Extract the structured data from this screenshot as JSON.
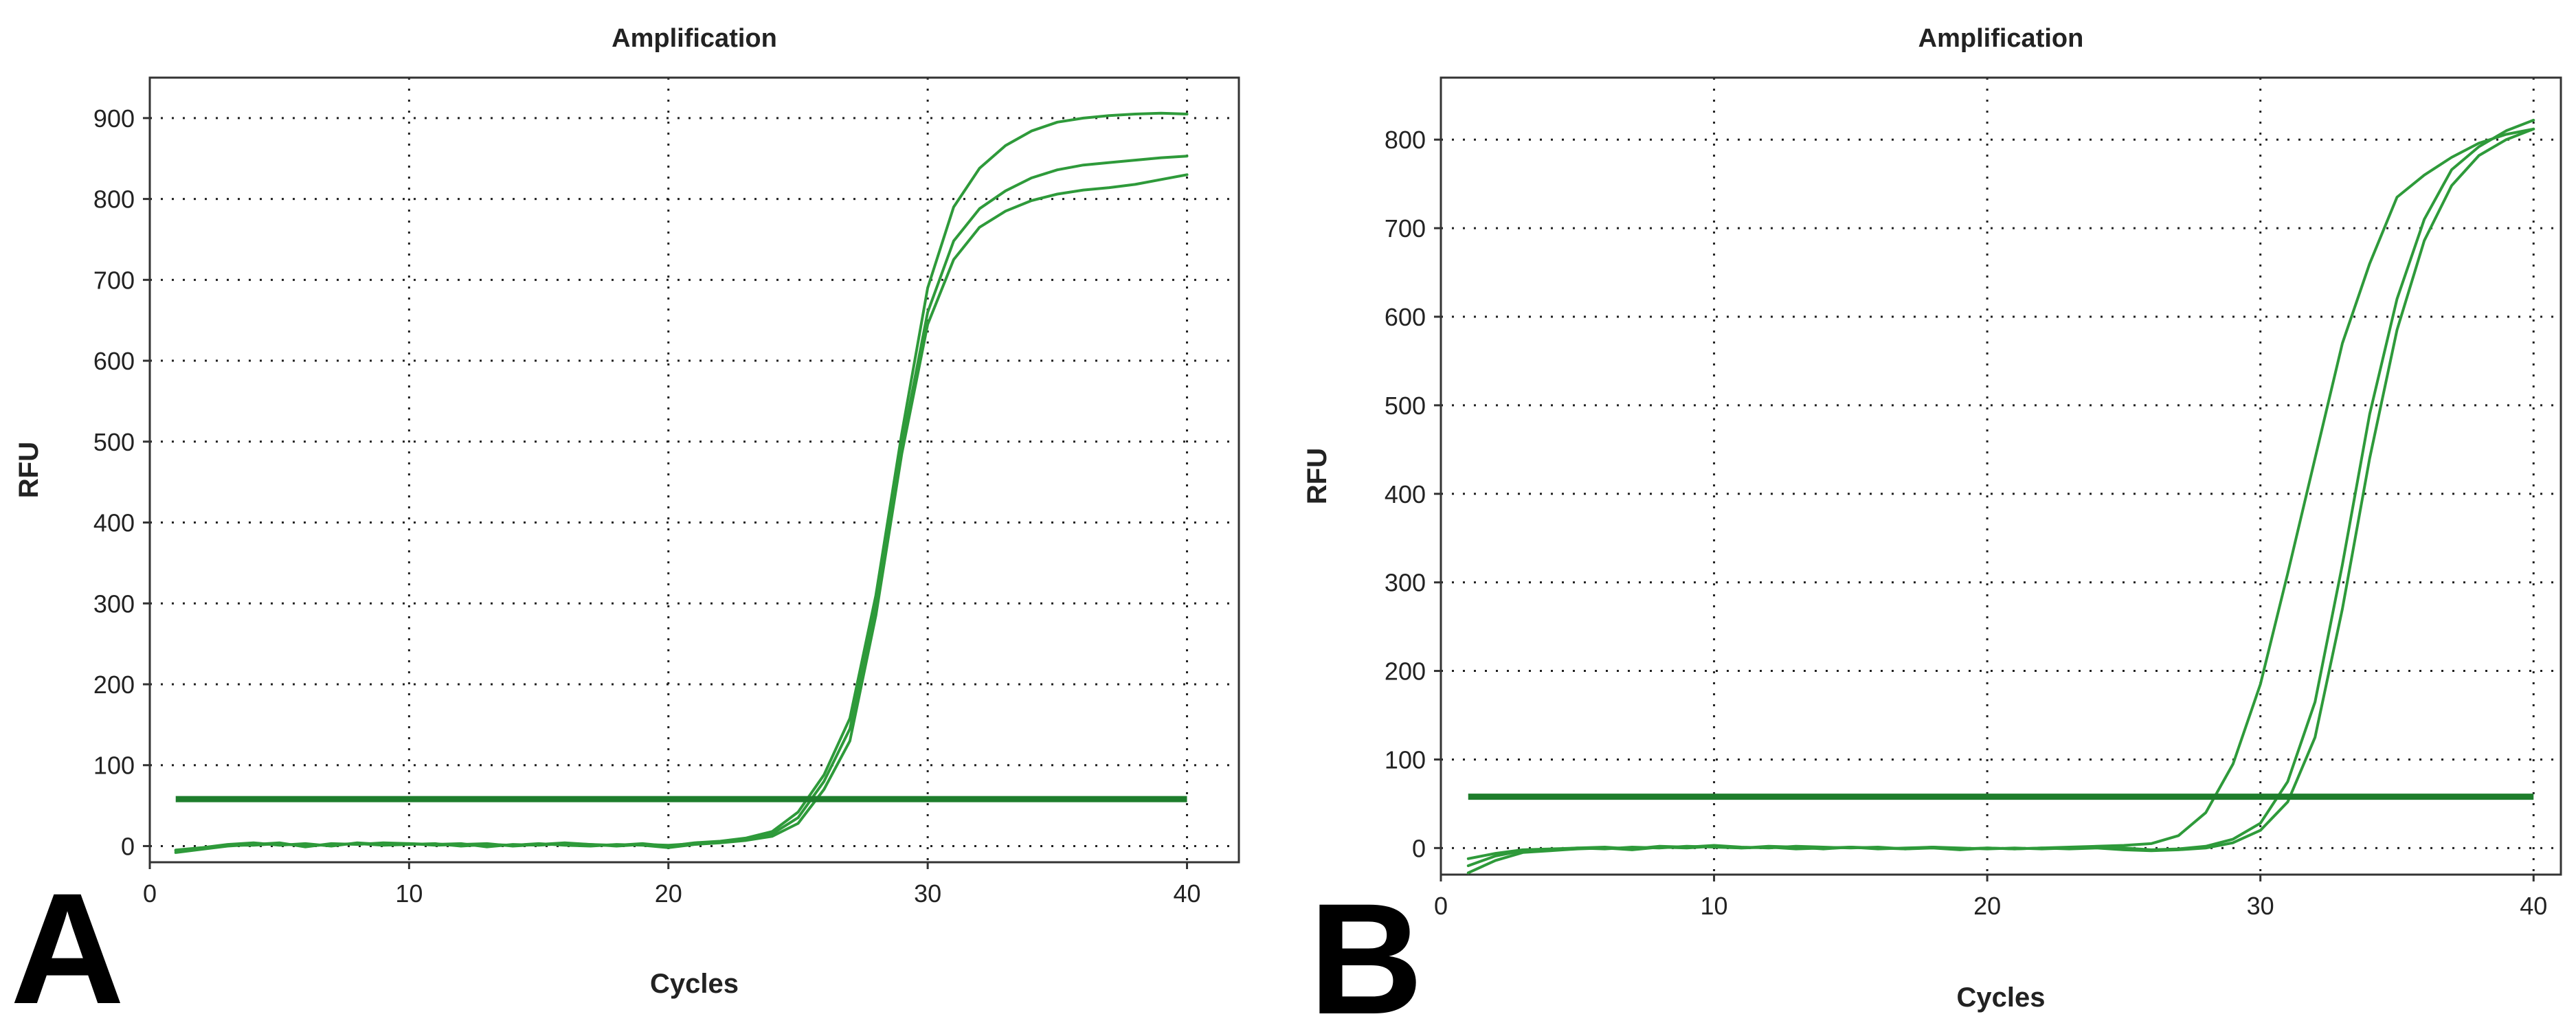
{
  "colors": {
    "curve": "#2e9a3a",
    "threshold": "#1e7d2c"
  },
  "chart_data": [
    {
      "type": "line",
      "panel_label": "A",
      "title": "Amplification",
      "xlabel": "Cycles",
      "ylabel": "RFU",
      "xlim": [
        0,
        42
      ],
      "ylim": [
        -20,
        950
      ],
      "xticks": [
        0,
        10,
        20,
        30,
        40
      ],
      "yticks": [
        0,
        100,
        200,
        300,
        400,
        500,
        600,
        700,
        800,
        900
      ],
      "grid": true,
      "threshold": 58,
      "series": [
        {
          "x": [
            1,
            2,
            3,
            4,
            5,
            6,
            7,
            8,
            9,
            10,
            11,
            12,
            13,
            14,
            15,
            16,
            17,
            18,
            19,
            20,
            21,
            22,
            23,
            24,
            25,
            26,
            27,
            28,
            29,
            30,
            31,
            32,
            33,
            34,
            35,
            36,
            37,
            38,
            39,
            40
          ],
          "y": [
            -8,
            -4,
            0,
            2,
            4,
            -1,
            3,
            2,
            4,
            3,
            2,
            3,
            -1,
            2,
            1,
            3,
            2,
            1,
            3,
            0,
            4,
            6,
            10,
            18,
            42,
            88,
            158,
            310,
            510,
            690,
            790,
            838,
            866,
            884,
            895,
            900,
            903,
            905,
            906,
            905
          ]
        },
        {
          "x": [
            1,
            2,
            3,
            4,
            5,
            6,
            7,
            8,
            9,
            10,
            11,
            12,
            13,
            14,
            15,
            16,
            17,
            18,
            19,
            20,
            21,
            22,
            23,
            24,
            25,
            26,
            27,
            28,
            29,
            30,
            31,
            32,
            33,
            34,
            35,
            36,
            37,
            38,
            39,
            40
          ],
          "y": [
            -5,
            -2,
            2,
            4,
            1,
            3,
            0,
            4,
            2,
            3,
            1,
            2,
            3,
            0,
            2,
            4,
            2,
            0,
            2,
            1,
            3,
            5,
            8,
            15,
            35,
            80,
            145,
            295,
            495,
            660,
            748,
            788,
            810,
            826,
            836,
            842,
            845,
            848,
            851,
            853
          ]
        },
        {
          "x": [
            1,
            2,
            3,
            4,
            5,
            6,
            7,
            8,
            9,
            10,
            11,
            12,
            13,
            14,
            15,
            16,
            17,
            18,
            19,
            20,
            21,
            22,
            23,
            24,
            25,
            26,
            27,
            28,
            29,
            30,
            31,
            32,
            33,
            34,
            35,
            36,
            37,
            38,
            39,
            40
          ],
          "y": [
            -6,
            -3,
            1,
            1,
            3,
            0,
            2,
            3,
            1,
            2,
            3,
            0,
            2,
            1,
            3,
            1,
            0,
            2,
            1,
            -2,
            2,
            4,
            7,
            12,
            28,
            70,
            130,
            285,
            485,
            645,
            725,
            765,
            785,
            798,
            806,
            811,
            814,
            818,
            824,
            830
          ]
        }
      ]
    },
    {
      "type": "line",
      "panel_label": "B",
      "title": "Amplification",
      "xlabel": "Cycles",
      "ylabel": "RFU",
      "xlim": [
        0,
        41
      ],
      "ylim": [
        -30,
        870
      ],
      "xticks": [
        0,
        10,
        20,
        30,
        40
      ],
      "yticks": [
        0,
        100,
        200,
        300,
        400,
        500,
        600,
        700,
        800
      ],
      "grid": true,
      "threshold": 58,
      "series": [
        {
          "x": [
            1,
            2,
            3,
            4,
            5,
            6,
            7,
            8,
            9,
            10,
            11,
            12,
            13,
            14,
            15,
            16,
            17,
            18,
            19,
            20,
            21,
            22,
            23,
            24,
            25,
            26,
            27,
            28,
            29,
            30,
            31,
            32,
            33,
            34,
            35,
            36,
            37,
            38,
            39,
            40
          ],
          "y": [
            -12,
            -6,
            -2,
            -1,
            0,
            1,
            -1,
            2,
            1,
            3,
            1,
            0,
            2,
            1,
            0,
            1,
            -1,
            0,
            -2,
            0,
            -1,
            0,
            1,
            2,
            3,
            5,
            14,
            40,
            95,
            185,
            310,
            440,
            570,
            660,
            735,
            760,
            780,
            796,
            806,
            812
          ]
        },
        {
          "x": [
            1,
            2,
            3,
            4,
            5,
            6,
            7,
            8,
            9,
            10,
            11,
            12,
            13,
            14,
            15,
            16,
            17,
            18,
            19,
            20,
            21,
            22,
            23,
            24,
            25,
            26,
            27,
            28,
            29,
            30,
            31,
            32,
            33,
            34,
            35,
            36,
            37,
            38,
            39,
            40
          ],
          "y": [
            -20,
            -9,
            -3,
            -2,
            0,
            -1,
            1,
            0,
            2,
            1,
            0,
            2,
            1,
            -1,
            1,
            0,
            -1,
            1,
            0,
            -1,
            0,
            -1,
            0,
            1,
            0,
            -2,
            -1,
            2,
            10,
            28,
            75,
            165,
            320,
            490,
            620,
            710,
            766,
            792,
            810,
            822
          ]
        },
        {
          "x": [
            1,
            2,
            3,
            4,
            5,
            6,
            7,
            8,
            9,
            10,
            11,
            12,
            13,
            14,
            15,
            16,
            17,
            18,
            19,
            20,
            21,
            22,
            23,
            24,
            25,
            26,
            27,
            28,
            29,
            30,
            31,
            32,
            33,
            34,
            35,
            36,
            37,
            38,
            39,
            40
          ],
          "y": [
            -28,
            -14,
            -5,
            -3,
            -1,
            0,
            -2,
            1,
            0,
            2,
            0,
            1,
            -1,
            0,
            1,
            -1,
            0,
            1,
            -1,
            0,
            -1,
            0,
            -1,
            0,
            -2,
            -3,
            -2,
            0,
            6,
            20,
            52,
            125,
            270,
            440,
            585,
            686,
            748,
            782,
            800,
            812
          ]
        }
      ]
    }
  ]
}
